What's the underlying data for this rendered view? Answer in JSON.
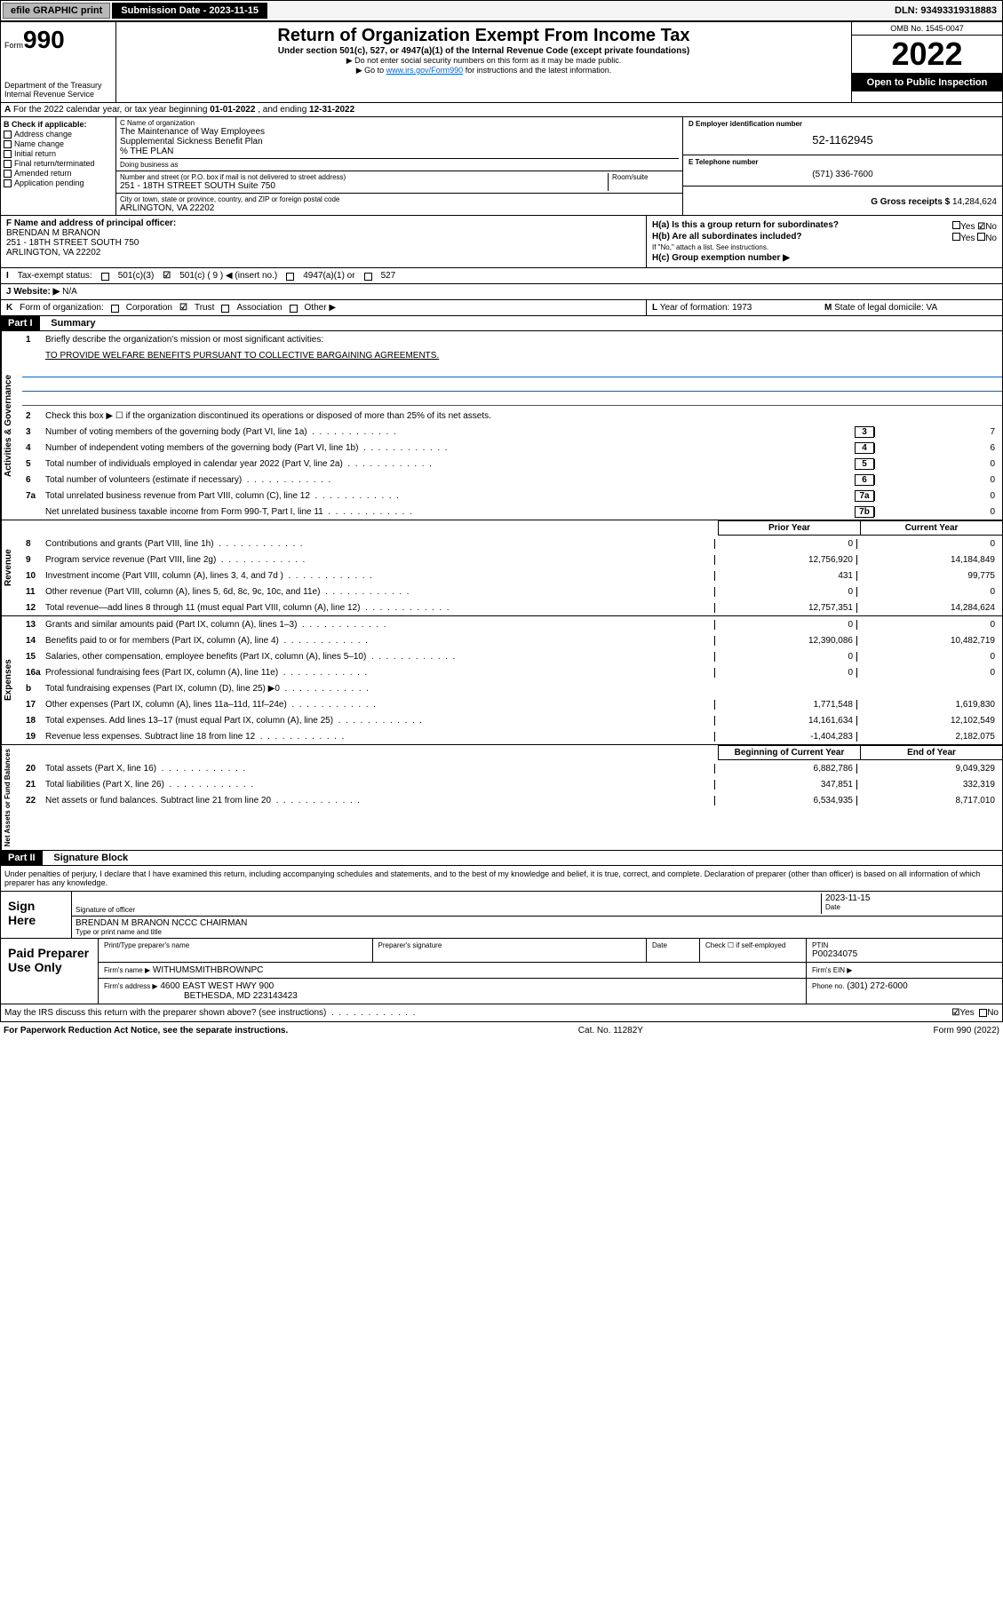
{
  "top": {
    "efile_btn": "efile GRAPHIC print",
    "sub_label": "Submission Date - 2023-11-15",
    "dln": "DLN: 93493319318883"
  },
  "header": {
    "form_word": "Form",
    "form_number": "990",
    "title": "Return of Organization Exempt From Income Tax",
    "subtitle": "Under section 501(c), 527, or 4947(a)(1) of the Internal Revenue Code (except private foundations)",
    "inst1": "▶ Do not enter social security numbers on this form as it may be made public.",
    "inst2_pre": "▶ Go to ",
    "inst2_link": "www.irs.gov/Form990",
    "inst2_post": " for instructions and the latest information.",
    "dept": "Department of the Treasury",
    "irs": "Internal Revenue Service",
    "omb": "OMB No. 1545-0047",
    "year": "2022",
    "open_pub": "Open to Public Inspection"
  },
  "line_a": {
    "label_a": "A",
    "text": "For the 2022 calendar year, or tax year beginning ",
    "begin": "01-01-2022",
    "mid": " , and ending ",
    "end": "12-31-2022"
  },
  "section_b": {
    "label": "B Check if applicable:",
    "items": [
      "Address change",
      "Name change",
      "Initial return",
      "Final return/terminated",
      "Amended return",
      "Application pending"
    ]
  },
  "section_c": {
    "name_label": "C Name of organization",
    "name1": "The Maintenance of Way Employees",
    "name2": "Supplemental Sickness Benefit Plan",
    "name3": "% THE PLAN",
    "dba_label": "Doing business as",
    "addr_label": "Number and street (or P.O. box if mail is not delivered to street address)",
    "room_label": "Room/suite",
    "addr": "251 - 18TH STREET SOUTH Suite 750",
    "city_label": "City or town, state or province, country, and ZIP or foreign postal code",
    "city": "ARLINGTON, VA  22202"
  },
  "section_d": {
    "label": "D Employer identification number",
    "value": "52-1162945"
  },
  "section_e": {
    "label": "E Telephone number",
    "value": "(571) 336-7600"
  },
  "section_g": {
    "label": "G Gross receipts $",
    "value": "14,284,624"
  },
  "section_f": {
    "label": "F Name and address of principal officer:",
    "line1": "BRENDAN M BRANON",
    "line2": "251 - 18TH STREET SOUTH 750",
    "line3": "ARLINGTON, VA  22202"
  },
  "section_h": {
    "ha": "H(a)  Is this a group return for subordinates?",
    "hb": "H(b)  Are all subordinates included?",
    "hb_note": "If \"No,\" attach a list. See instructions.",
    "hc": "H(c)  Group exemption number ▶",
    "yes": "Yes",
    "no": "No"
  },
  "section_i": {
    "label": "I",
    "text": "Tax-exempt status:",
    "c3": "501(c)(3)",
    "c": "501(c) ( 9 ) ◀ (insert no.)",
    "a1": "4947(a)(1) or",
    "s527": "527"
  },
  "section_j": {
    "label": "J",
    "text": "Website: ▶",
    "value": "N/A"
  },
  "section_k": {
    "label": "K",
    "text": "Form of organization:",
    "opts": [
      "Corporation",
      "Trust",
      "Association",
      "Other ▶"
    ]
  },
  "section_l": {
    "label": "L",
    "text": "Year of formation:",
    "value": "1973"
  },
  "section_m": {
    "label": "M",
    "text": "State of legal domicile:",
    "value": "VA"
  },
  "part1": {
    "part": "Part I",
    "title": "Summary",
    "q1_label": "1",
    "q1": "Briefly describe the organization's mission or most significant activities:",
    "q1_val": "TO PROVIDE WELFARE BENEFITS PURSUANT TO COLLECTIVE BARGAINING AGREEMENTS.",
    "q2_label": "2",
    "q2": "Check this box ▶ ☐  if the organization discontinued its operations or disposed of more than 25% of its net assets.",
    "rows_gov": [
      {
        "n": "3",
        "t": "Number of voting members of the governing body (Part VI, line 1a)",
        "b": "3",
        "v": "7"
      },
      {
        "n": "4",
        "t": "Number of independent voting members of the governing body (Part VI, line 1b)",
        "b": "4",
        "v": "6"
      },
      {
        "n": "5",
        "t": "Total number of individuals employed in calendar year 2022 (Part V, line 2a)",
        "b": "5",
        "v": "0"
      },
      {
        "n": "6",
        "t": "Total number of volunteers (estimate if necessary)",
        "b": "6",
        "v": "0"
      },
      {
        "n": "7a",
        "t": "Total unrelated business revenue from Part VIII, column (C), line 12",
        "b": "7a",
        "v": "0"
      },
      {
        "n": "",
        "t": "Net unrelated business taxable income from Form 990-T, Part I, line 11",
        "b": "7b",
        "v": "0"
      }
    ],
    "col_prior": "Prior Year",
    "col_curr": "Current Year",
    "rows_rev": [
      {
        "n": "8",
        "t": "Contributions and grants (Part VIII, line 1h)",
        "p": "0",
        "c": "0"
      },
      {
        "n": "9",
        "t": "Program service revenue (Part VIII, line 2g)",
        "p": "12,756,920",
        "c": "14,184,849"
      },
      {
        "n": "10",
        "t": "Investment income (Part VIII, column (A), lines 3, 4, and 7d )",
        "p": "431",
        "c": "99,775"
      },
      {
        "n": "11",
        "t": "Other revenue (Part VIII, column (A), lines 5, 6d, 8c, 9c, 10c, and 11e)",
        "p": "0",
        "c": "0"
      },
      {
        "n": "12",
        "t": "Total revenue—add lines 8 through 11 (must equal Part VIII, column (A), line 12)",
        "p": "12,757,351",
        "c": "14,284,624"
      }
    ],
    "rows_exp": [
      {
        "n": "13",
        "t": "Grants and similar amounts paid (Part IX, column (A), lines 1–3)",
        "p": "0",
        "c": "0"
      },
      {
        "n": "14",
        "t": "Benefits paid to or for members (Part IX, column (A), line 4)",
        "p": "12,390,086",
        "c": "10,482,719"
      },
      {
        "n": "15",
        "t": "Salaries, other compensation, employee benefits (Part IX, column (A), lines 5–10)",
        "p": "0",
        "c": "0"
      },
      {
        "n": "16a",
        "t": "Professional fundraising fees (Part IX, column (A), line 11e)",
        "p": "0",
        "c": "0"
      },
      {
        "n": "b",
        "t": "Total fundraising expenses (Part IX, column (D), line 25) ▶0",
        "p": "",
        "c": ""
      },
      {
        "n": "17",
        "t": "Other expenses (Part IX, column (A), lines 11a–11d, 11f–24e)",
        "p": "1,771,548",
        "c": "1,619,830"
      },
      {
        "n": "18",
        "t": "Total expenses. Add lines 13–17 (must equal Part IX, column (A), line 25)",
        "p": "14,161,634",
        "c": "12,102,549"
      },
      {
        "n": "19",
        "t": "Revenue less expenses. Subtract line 18 from line 12",
        "p": "-1,404,283",
        "c": "2,182,075"
      }
    ],
    "col_boy": "Beginning of Current Year",
    "col_eoy": "End of Year",
    "rows_net": [
      {
        "n": "20",
        "t": "Total assets (Part X, line 16)",
        "p": "6,882,786",
        "c": "9,049,329"
      },
      {
        "n": "21",
        "t": "Total liabilities (Part X, line 26)",
        "p": "347,851",
        "c": "332,319"
      },
      {
        "n": "22",
        "t": "Net assets or fund balances. Subtract line 21 from line 20",
        "p": "6,534,935",
        "c": "8,717,010"
      }
    ],
    "tabs": [
      "Activities & Governance",
      "Revenue",
      "Expenses",
      "Net Assets or Fund Balances"
    ]
  },
  "part2": {
    "part": "Part II",
    "title": "Signature Block",
    "penalty": "Under penalties of perjury, I declare that I have examined this return, including accompanying schedules and statements, and to the best of my knowledge and belief, it is true, correct, and complete. Declaration of preparer (other than officer) is based on all information of which preparer has any knowledge.",
    "sign_here": "Sign Here",
    "sig_of": "Signature of officer",
    "date_lbl": "Date",
    "date_val": "2023-11-15",
    "name_title": "BRENDAN M BRANON NCCC CHAIRMAN",
    "type_lbl": "Type or print name and title",
    "paid": "Paid Preparer Use Only",
    "prep_name_lbl": "Print/Type preparer's name",
    "prep_sig_lbl": "Preparer's signature",
    "check_se": "Check ☐ if self-employed",
    "ptin_lbl": "PTIN",
    "ptin": "P00234075",
    "firm_name_lbl": "Firm's name   ▶",
    "firm_name": "WITHUMSMITHBROWNPC",
    "firm_ein_lbl": "Firm's EIN ▶",
    "firm_addr_lbl": "Firm's address ▶",
    "firm_addr1": "4600 EAST WEST HWY 900",
    "firm_addr2": "BETHESDA, MD  223143423",
    "phone_lbl": "Phone no.",
    "phone": "(301) 272-6000",
    "discuss": "May the IRS discuss this return with the preparer shown above? (see instructions)",
    "yes": "Yes",
    "no": "No"
  },
  "footer": {
    "left": "For Paperwork Reduction Act Notice, see the separate instructions.",
    "mid": "Cat. No. 11282Y",
    "right": "Form 990 (2022)"
  },
  "colors": {
    "link": "#0066cc",
    "header_bg": "#000000"
  }
}
